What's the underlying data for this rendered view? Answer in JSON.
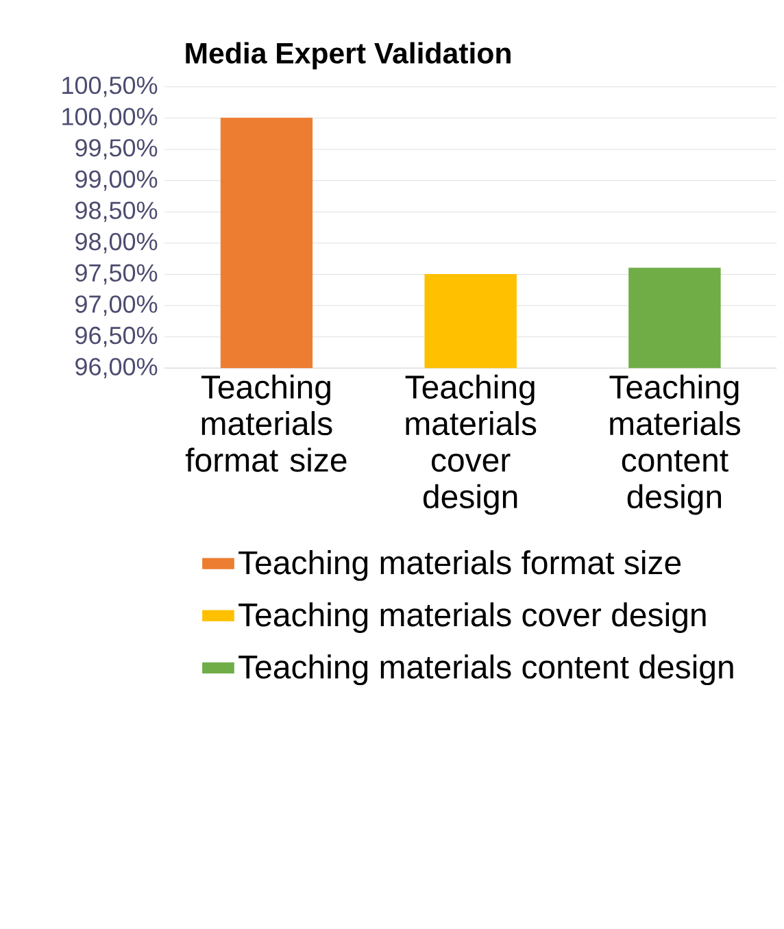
{
  "chart_data": {
    "type": "bar",
    "title": "Media Expert Validation",
    "categories": [
      "Teaching materials format size",
      "Teaching materials cover design",
      "Teaching materials content design"
    ],
    "series": [
      {
        "name": "Teaching materials format size",
        "color": "#ed7d31",
        "values": [
          100.0,
          null,
          null
        ]
      },
      {
        "name": "Teaching materials cover design",
        "color": "#ffc000",
        "values": [
          null,
          97.5,
          null
        ]
      },
      {
        "name": "Teaching materials content design",
        "color": "#70ad47",
        "values": [
          null,
          null,
          97.6
        ]
      }
    ],
    "ylim": [
      96,
      100.5
    ],
    "yticks": [
      {
        "value": 96,
        "label": "96,00%"
      },
      {
        "value": 96.5,
        "label": "96,50%"
      },
      {
        "value": 97,
        "label": "97,00%"
      },
      {
        "value": 97.5,
        "label": "97,50%"
      },
      {
        "value": 98,
        "label": "98,00%"
      },
      {
        "value": 98.5,
        "label": "98,50%"
      },
      {
        "value": 99,
        "label": "99,00%"
      },
      {
        "value": 99.5,
        "label": "99,50%"
      },
      {
        "value": 100,
        "label": "100,00%"
      },
      {
        "value": 100.5,
        "label": "100,50%"
      }
    ],
    "grid": "y",
    "legend": "bottom"
  }
}
